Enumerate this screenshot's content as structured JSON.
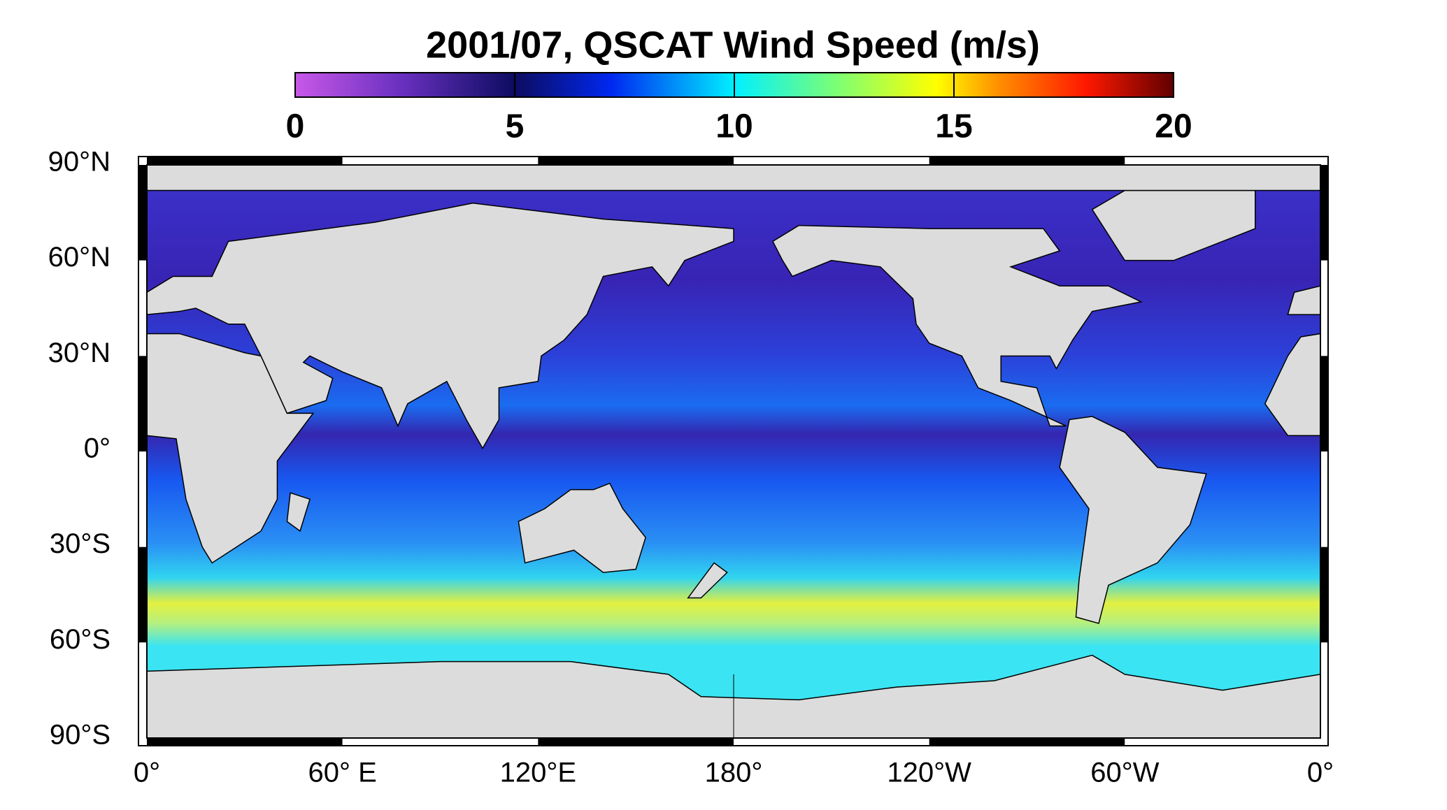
{
  "map": {
    "title": "2001/07,  QSCAT Wind Speed (m/s)",
    "colorbar": {
      "lim": [
        0,
        20
      ],
      "ticks": [
        0,
        5,
        10,
        15,
        20
      ]
    },
    "lat_labels": [
      "90°N",
      "60°N",
      "30°N",
      "0°",
      "30°S",
      "60°S",
      "90°S"
    ],
    "lon_labels": [
      "0°",
      "60° E",
      "120°E",
      "180°",
      "120°W",
      "60°W",
      "0°"
    ]
  }
}
